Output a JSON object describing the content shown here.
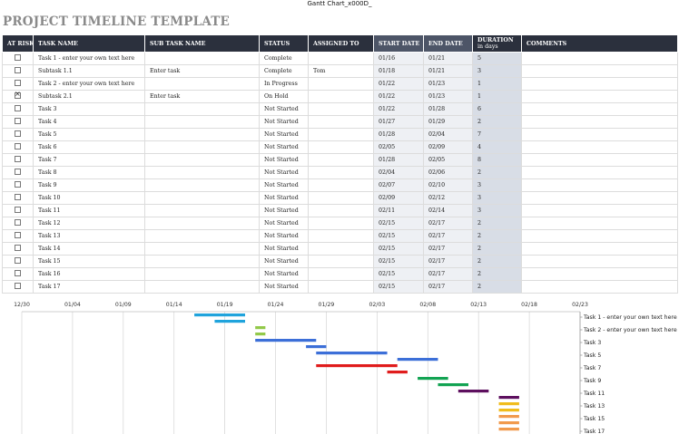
{
  "doc_title": "Gantt Chart_x000D_",
  "page_title": "PROJECT TIMELINE TEMPLATE",
  "columns": {
    "at_risk": "AT RISK",
    "task_name": "TASK NAME",
    "sub_task_name": "SUB TASK NAME",
    "status": "STATUS",
    "assigned_to": "ASSIGNED TO",
    "start_date": "START DATE",
    "end_date": "END DATE",
    "duration": "DURATION",
    "duration_unit": "in days",
    "comments": "COMMENTS"
  },
  "rows": [
    {
      "risk": false,
      "task": "Task 1 - enter your own text here",
      "sub": "",
      "status": "Complete",
      "assigned": "",
      "start": "01/16",
      "end": "01/21",
      "duration": "5",
      "comments": ""
    },
    {
      "risk": false,
      "task": "Subtask 1.1",
      "sub": "Enter task",
      "status": "Complete",
      "assigned": "Tom",
      "start": "01/18",
      "end": "01/21",
      "duration": "3",
      "comments": ""
    },
    {
      "risk": false,
      "task": "Task 2 - enter your own text here",
      "sub": "",
      "status": "In Progress",
      "assigned": "",
      "start": "01/22",
      "end": "01/23",
      "duration": "1",
      "comments": ""
    },
    {
      "risk": true,
      "task": "Subtask 2.1",
      "sub": "Enter task",
      "status": "On Hold",
      "assigned": "",
      "start": "01/22",
      "end": "01/23",
      "duration": "1",
      "comments": ""
    },
    {
      "risk": false,
      "task": "Task 3",
      "sub": "",
      "status": "Not Started",
      "assigned": "",
      "start": "01/22",
      "end": "01/28",
      "duration": "6",
      "comments": ""
    },
    {
      "risk": false,
      "task": "Task 4",
      "sub": "",
      "status": "Not Started",
      "assigned": "",
      "start": "01/27",
      "end": "01/29",
      "duration": "2",
      "comments": ""
    },
    {
      "risk": false,
      "task": "Task 5",
      "sub": "",
      "status": "Not Started",
      "assigned": "",
      "start": "01/28",
      "end": "02/04",
      "duration": "7",
      "comments": ""
    },
    {
      "risk": false,
      "task": "Task 6",
      "sub": "",
      "status": "Not Started",
      "assigned": "",
      "start": "02/05",
      "end": "02/09",
      "duration": "4",
      "comments": ""
    },
    {
      "risk": false,
      "task": "Task 7",
      "sub": "",
      "status": "Not Started",
      "assigned": "",
      "start": "01/28",
      "end": "02/05",
      "duration": "8",
      "comments": ""
    },
    {
      "risk": false,
      "task": "Task 8",
      "sub": "",
      "status": "Not Started",
      "assigned": "",
      "start": "02/04",
      "end": "02/06",
      "duration": "2",
      "comments": ""
    },
    {
      "risk": false,
      "task": "Task 9",
      "sub": "",
      "status": "Not Started",
      "assigned": "",
      "start": "02/07",
      "end": "02/10",
      "duration": "3",
      "comments": ""
    },
    {
      "risk": false,
      "task": "Task 10",
      "sub": "",
      "status": "Not Started",
      "assigned": "",
      "start": "02/09",
      "end": "02/12",
      "duration": "3",
      "comments": ""
    },
    {
      "risk": false,
      "task": "Task 11",
      "sub": "",
      "status": "Not Started",
      "assigned": "",
      "start": "02/11",
      "end": "02/14",
      "duration": "3",
      "comments": ""
    },
    {
      "risk": false,
      "task": "Task 12",
      "sub": "",
      "status": "Not Started",
      "assigned": "",
      "start": "02/15",
      "end": "02/17",
      "duration": "2",
      "comments": ""
    },
    {
      "risk": false,
      "task": "Task 13",
      "sub": "",
      "status": "Not Started",
      "assigned": "",
      "start": "02/15",
      "end": "02/17",
      "duration": "2",
      "comments": ""
    },
    {
      "risk": false,
      "task": "Task 14",
      "sub": "",
      "status": "Not Started",
      "assigned": "",
      "start": "02/15",
      "end": "02/17",
      "duration": "2",
      "comments": ""
    },
    {
      "risk": false,
      "task": "Task 15",
      "sub": "",
      "status": "Not Started",
      "assigned": "",
      "start": "02/15",
      "end": "02/17",
      "duration": "2",
      "comments": ""
    },
    {
      "risk": false,
      "task": "Task 16",
      "sub": "",
      "status": "Not Started",
      "assigned": "",
      "start": "02/15",
      "end": "02/17",
      "duration": "2",
      "comments": ""
    },
    {
      "risk": false,
      "task": "Task 17",
      "sub": "",
      "status": "Not Started",
      "assigned": "",
      "start": "02/15",
      "end": "02/17",
      "duration": "2",
      "comments": ""
    }
  ],
  "colors": {
    "header_bg": "#2b303d",
    "date_header_bg": "#4d5567",
    "date_cell_bg": "#eef0f4",
    "duration_cell_bg": "#d8dde6",
    "title_gray": "#8a8a8a"
  },
  "chart_data": {
    "type": "gantt",
    "x_ticks": [
      "12/30",
      "01/04",
      "01/09",
      "01/14",
      "01/19",
      "01/24",
      "01/29",
      "02/03",
      "02/08",
      "02/13",
      "02/18",
      "02/23"
    ],
    "y_labels": [
      "Task 1 - enter your own text here",
      "Task 2 - enter your own text here",
      "Task 3",
      "Task 5",
      "Task 7",
      "Task 9",
      "Task 11",
      "Task 13",
      "Task 15",
      "Task 17"
    ],
    "bars": [
      {
        "start": "01/16",
        "end": "01/21",
        "color": "#1fa3dc"
      },
      {
        "start": "01/18",
        "end": "01/21",
        "color": "#1fa3dc"
      },
      {
        "start": "01/22",
        "end": "01/23",
        "color": "#92c94a"
      },
      {
        "start": "01/22",
        "end": "01/23",
        "color": "#92c94a"
      },
      {
        "start": "01/22",
        "end": "01/28",
        "color": "#3c6fd8"
      },
      {
        "start": "01/27",
        "end": "01/29",
        "color": "#3c6fd8"
      },
      {
        "start": "01/28",
        "end": "02/04",
        "color": "#3c6fd8"
      },
      {
        "start": "02/05",
        "end": "02/09",
        "color": "#3c6fd8"
      },
      {
        "start": "01/28",
        "end": "02/05",
        "color": "#e01c1c"
      },
      {
        "start": "02/04",
        "end": "02/06",
        "color": "#e01c1c"
      },
      {
        "start": "02/07",
        "end": "02/10",
        "color": "#12a352"
      },
      {
        "start": "02/09",
        "end": "02/12",
        "color": "#12a352"
      },
      {
        "start": "02/11",
        "end": "02/14",
        "color": "#5d0f5e"
      },
      {
        "start": "02/15",
        "end": "02/17",
        "color": "#5d0f5e"
      },
      {
        "start": "02/15",
        "end": "02/17",
        "color": "#f0bc1c"
      },
      {
        "start": "02/15",
        "end": "02/17",
        "color": "#f0bc1c"
      },
      {
        "start": "02/15",
        "end": "02/17",
        "color": "#f19a4c"
      },
      {
        "start": "02/15",
        "end": "02/17",
        "color": "#f19a4c"
      },
      {
        "start": "02/15",
        "end": "02/17",
        "color": "#f19a4c"
      }
    ],
    "grid": true
  }
}
